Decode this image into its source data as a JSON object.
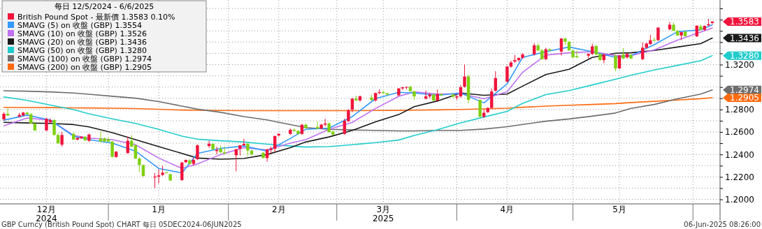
{
  "chart_data": {
    "type": "candlestick",
    "legend_title": "每日 12/5/2024 - 6/6/2025",
    "legend": "top left",
    "grid": true,
    "x": [
      "2024-12-05",
      "2024-12-06",
      "2024-12-09",
      "2024-12-10",
      "2024-12-11",
      "2024-12-12",
      "2024-12-13",
      "2024-12-16",
      "2024-12-17",
      "2024-12-18",
      "2024-12-19",
      "2024-12-20",
      "2024-12-23",
      "2024-12-24",
      "2024-12-25",
      "2024-12-26",
      "2024-12-27",
      "2024-12-30",
      "2024-12-31",
      "2025-01-01",
      "2025-01-02",
      "2025-01-03",
      "2025-01-06",
      "2025-01-07",
      "2025-01-08",
      "2025-01-09",
      "2025-01-10",
      "2025-01-13",
      "2025-01-14",
      "2025-01-15",
      "2025-01-16",
      "2025-01-17",
      "2025-01-20",
      "2025-01-21",
      "2025-01-22",
      "2025-01-23",
      "2025-01-24",
      "2025-01-27",
      "2025-01-28",
      "2025-01-29",
      "2025-01-30",
      "2025-01-31",
      "2025-02-03",
      "2025-02-04",
      "2025-02-05",
      "2025-02-06",
      "2025-02-07",
      "2025-02-10",
      "2025-02-11",
      "2025-02-12",
      "2025-02-13",
      "2025-02-14",
      "2025-02-17",
      "2025-02-18",
      "2025-02-19",
      "2025-02-20",
      "2025-02-21",
      "2025-02-24",
      "2025-02-25",
      "2025-02-26",
      "2025-02-27",
      "2025-02-28",
      "2025-03-03",
      "2025-03-04",
      "2025-03-05",
      "2025-03-06",
      "2025-03-07",
      "2025-03-10",
      "2025-03-11",
      "2025-03-12",
      "2025-03-13",
      "2025-03-14",
      "2025-03-17",
      "2025-03-18",
      "2025-03-19",
      "2025-03-20",
      "2025-03-21",
      "2025-03-24",
      "2025-03-25",
      "2025-03-26",
      "2025-03-27",
      "2025-03-28",
      "2025-03-31",
      "2025-04-01",
      "2025-04-02",
      "2025-04-03",
      "2025-04-04",
      "2025-04-07",
      "2025-04-08",
      "2025-04-09",
      "2025-04-10",
      "2025-04-11",
      "2025-04-14",
      "2025-04-15",
      "2025-04-16",
      "2025-04-17",
      "2025-04-18",
      "2025-04-21",
      "2025-04-22",
      "2025-04-23",
      "2025-04-24",
      "2025-04-25",
      "2025-04-28",
      "2025-04-29",
      "2025-04-30",
      "2025-05-01",
      "2025-05-02",
      "2025-05-05",
      "2025-05-06",
      "2025-05-07",
      "2025-05-08",
      "2025-05-09",
      "2025-05-12",
      "2025-05-13",
      "2025-05-14",
      "2025-05-15",
      "2025-05-16",
      "2025-05-19",
      "2025-05-20",
      "2025-05-21",
      "2025-05-22",
      "2025-05-23",
      "2025-05-26",
      "2025-05-27",
      "2025-05-28",
      "2025-05-29",
      "2025-05-30",
      "2025-06-02",
      "2025-06-03",
      "2025-06-04",
      "2025-06-05",
      "2025-06-06"
    ],
    "xlim": [
      "2024-12-04",
      "2025-06-08"
    ],
    "xticks": [
      {
        "value": "2024-12-16",
        "label": "12月\n2024"
      },
      {
        "value": "2025-01-01",
        "label": null
      },
      {
        "value": "2025-01-14",
        "label": "1月"
      },
      {
        "value": "2025-02-01",
        "label": null
      },
      {
        "value": "2025-02-14",
        "label": "2月"
      },
      {
        "value": "2025-03-01",
        "label": null
      },
      {
        "value": "2025-03-13",
        "label": "3月\n2025"
      },
      {
        "value": "2025-04-01",
        "label": null
      },
      {
        "value": "2025-04-14",
        "label": "4月"
      },
      {
        "value": "2025-05-01",
        "label": null
      },
      {
        "value": "2025-05-13",
        "label": "5月"
      },
      {
        "value": "2025-06-01",
        "label": null
      }
    ],
    "ylim": [
      1.196,
      1.3775
    ],
    "yticks": [
      {
        "value": 1.2,
        "label": "1.2000"
      },
      {
        "value": 1.21,
        "label": null
      },
      {
        "value": 1.22,
        "label": "1.2200"
      },
      {
        "value": 1.23,
        "label": null
      },
      {
        "value": 1.24,
        "label": "1.2400"
      },
      {
        "value": 1.25,
        "label": null
      },
      {
        "value": 1.26,
        "label": "1.2600"
      },
      {
        "value": 1.27,
        "label": null
      },
      {
        "value": 1.28,
        "label": "1.2800"
      },
      {
        "value": 1.29,
        "label": null
      },
      {
        "value": 1.3,
        "label": null
      },
      {
        "value": 1.31,
        "label": null
      },
      {
        "value": 1.32,
        "label": "1.3200"
      },
      {
        "value": 1.33,
        "label": null
      },
      {
        "value": 1.34,
        "label": null
      },
      {
        "value": 1.35,
        "label": null
      },
      {
        "value": 1.36,
        "label": null
      },
      {
        "value": 1.37,
        "label": null
      }
    ],
    "annotations": [
      {
        "text": "1.3583",
        "x": "2025-06-06",
        "y": 1.3583
      },
      {
        "text": "1.3436",
        "x": "2025-06-06",
        "y": 1.3436
      },
      {
        "text": "1.3280",
        "x": "2025-06-06",
        "y": 1.328
      },
      {
        "text": "1.2974",
        "x": "2025-06-06",
        "y": 1.2974
      },
      {
        "text": "1.2905",
        "x": "2025-06-06",
        "y": 1.2905
      },
      "GBP Curncy (British Pound Spot) CHART 每日 05DEC2024-06JUN2025",
      "06-Jun-2025 08:26:00"
    ],
    "series": [
      {
        "name": "British Pound Spot - 最新價 1.3583 0.10%",
        "color": "#f0143c",
        "ohlc": [
          [
            1.2713,
            1.2775,
            1.27,
            1.2762
          ],
          [
            1.2762,
            1.281,
            1.2745,
            1.2746
          ],
          [
            1.2737,
            1.277,
            1.273,
            1.2752
          ],
          [
            1.2747,
            1.278,
            1.274,
            1.2772
          ],
          [
            1.2772,
            1.2782,
            1.2755,
            1.2758
          ],
          [
            1.2758,
            1.277,
            1.2676,
            1.2676
          ],
          [
            1.2676,
            1.268,
            1.261,
            1.2614
          ],
          [
            1.2614,
            1.2725,
            1.261,
            1.2717
          ],
          [
            1.2686,
            1.272,
            1.268,
            1.2706
          ],
          [
            1.2706,
            1.2715,
            1.257,
            1.2573
          ],
          [
            1.2573,
            1.259,
            1.2498,
            1.2499
          ],
          [
            1.2487,
            1.26,
            1.247,
            1.2573
          ],
          [
            1.2583,
            1.2595,
            1.253,
            1.2532
          ],
          [
            1.2532,
            1.255,
            1.2525,
            1.2548
          ],
          [
            1.2544,
            1.2562,
            1.254,
            1.2558
          ],
          [
            1.2558,
            1.2562,
            1.252,
            1.2526
          ],
          [
            1.2522,
            1.2585,
            1.251,
            1.2577
          ],
          [
            1.2542,
            1.2604,
            1.251,
            1.2515
          ],
          [
            1.2542,
            1.255,
            1.2512,
            1.2515
          ],
          [
            1.2536,
            1.2545,
            1.251,
            1.2515
          ],
          [
            1.2515,
            1.252,
            1.2375,
            1.2378
          ],
          [
            1.2378,
            1.243,
            1.237,
            1.2425
          ],
          [
            1.2413,
            1.256,
            1.2405,
            1.2522
          ],
          [
            1.2522,
            1.2573,
            1.2465,
            1.247
          ],
          [
            1.2481,
            1.249,
            1.236,
            1.2364
          ],
          [
            1.2364,
            1.2375,
            1.2245,
            1.2306
          ],
          [
            1.2306,
            1.231,
            1.2205,
            1.2207
          ],
          [
            1.2195,
            1.2234,
            1.2101,
            1.2203
          ],
          [
            1.2203,
            1.2269,
            1.2142,
            1.2214
          ],
          [
            1.2218,
            1.23,
            1.221,
            1.2238
          ],
          [
            1.224,
            1.225,
            1.223,
            1.2236
          ],
          [
            1.2224,
            1.223,
            1.2165,
            1.2168
          ],
          [
            1.2172,
            1.2335,
            1.2165,
            1.2327
          ],
          [
            1.2331,
            1.2355,
            1.2325,
            1.2351
          ],
          [
            1.2347,
            1.236,
            1.231,
            1.2316
          ],
          [
            1.2316,
            1.237,
            1.23,
            1.2351
          ],
          [
            1.2358,
            1.249,
            1.235,
            1.2481
          ],
          [
            1.2475,
            1.2522,
            1.246,
            1.2495
          ],
          [
            1.2495,
            1.25,
            1.244,
            1.2446
          ],
          [
            1.243,
            1.247,
            1.24,
            1.244
          ],
          [
            1.245,
            1.248,
            1.2415,
            1.2419
          ],
          [
            1.2419,
            1.247,
            1.24,
            1.2409
          ],
          [
            1.2393,
            1.245,
            1.225,
            1.2446
          ],
          [
            1.245,
            1.2483,
            1.239,
            1.2481
          ],
          [
            1.2481,
            1.254,
            1.2475,
            1.2495
          ],
          [
            1.2495,
            1.2505,
            1.239,
            1.2434
          ],
          [
            1.2434,
            1.2445,
            1.2395,
            1.2399
          ],
          [
            1.2415,
            1.242,
            1.2365,
            1.2368
          ],
          [
            1.2368,
            1.245,
            1.2335,
            1.2444
          ],
          [
            1.244,
            1.247,
            1.241,
            1.2454
          ],
          [
            1.245,
            1.257,
            1.242,
            1.2563
          ],
          [
            1.2569,
            1.259,
            1.256,
            1.2583
          ],
          [
            1.2583,
            1.263,
            1.2575,
            1.262
          ],
          [
            1.262,
            1.263,
            1.2605,
            1.261
          ],
          [
            1.261,
            1.2615,
            1.2575,
            1.2583
          ],
          [
            1.2583,
            1.267,
            1.2575,
            1.2665
          ],
          [
            1.2665,
            1.2675,
            1.263,
            1.2634
          ],
          [
            1.2645,
            1.269,
            1.2625,
            1.263
          ],
          [
            1.263,
            1.2673,
            1.2625,
            1.2665
          ],
          [
            1.2665,
            1.2717,
            1.265,
            1.2676
          ],
          [
            1.2676,
            1.2685,
            1.2595,
            1.2598
          ],
          [
            1.2604,
            1.261,
            1.257,
            1.2577
          ],
          [
            1.2583,
            1.272,
            1.2575,
            1.27
          ],
          [
            1.2696,
            1.2805,
            1.269,
            1.2793
          ],
          [
            1.2799,
            1.29,
            1.2775,
            1.2897
          ],
          [
            1.2897,
            1.2922,
            1.2875,
            1.2881
          ],
          [
            1.2881,
            1.2925,
            1.287,
            1.2918
          ],
          [
            1.2906,
            1.2932,
            1.288,
            1.2885
          ],
          [
            1.2881,
            1.295,
            1.287,
            1.2947
          ],
          [
            1.2947,
            1.298,
            1.2935,
            1.2955
          ],
          [
            1.2955,
            1.2965,
            1.294,
            1.2945
          ],
          [
            1.2945,
            1.295,
            1.2925,
            1.2933
          ],
          [
            1.2926,
            1.299,
            1.292,
            1.2988
          ],
          [
            1.2988,
            1.3,
            1.2975,
            1.2998
          ],
          [
            1.2998,
            1.3005,
            1.298,
            1.3002
          ],
          [
            1.3002,
            1.301,
            1.296,
            1.2962
          ],
          [
            1.2962,
            1.2968,
            1.2885,
            1.2917
          ],
          [
            1.2896,
            1.2968,
            1.289,
            1.2917
          ],
          [
            1.2917,
            1.2945,
            1.29,
            1.2933
          ],
          [
            1.2933,
            1.294,
            1.2875,
            1.288
          ],
          [
            1.288,
            1.2978,
            1.2875,
            1.2937
          ],
          [
            1.2937,
            1.2945,
            1.292,
            1.2927
          ],
          [
            1.2933,
            1.294,
            1.2905,
            1.2913
          ],
          [
            1.2907,
            1.2925,
            1.2885,
            1.2917
          ],
          [
            1.2917,
            1.3018,
            1.2905,
            1.2998
          ],
          [
            1.3002,
            1.3199,
            1.2995,
            1.3094
          ],
          [
            1.3094,
            1.311,
            1.2855,
            1.2886
          ],
          [
            1.2886,
            1.289,
            1.2733,
            1.2736
          ],
          [
            1.2736,
            1.28,
            1.2725,
            1.2771
          ],
          [
            1.2776,
            1.282,
            1.277,
            1.2814
          ],
          [
            1.2814,
            1.2988,
            1.281,
            1.2961
          ],
          [
            1.2967,
            1.3141,
            1.296,
            1.308
          ],
          [
            1.3049,
            1.319,
            1.304,
            1.3182
          ],
          [
            1.3182,
            1.3234,
            1.317,
            1.3219
          ],
          [
            1.3227,
            1.3285,
            1.3215,
            1.324
          ],
          [
            1.324,
            1.326,
            1.3225,
            1.326
          ],
          [
            1.326,
            1.33,
            1.325,
            1.3291
          ],
          [
            1.3291,
            1.339,
            1.328,
            1.3371
          ],
          [
            1.3371,
            1.3387,
            1.332,
            1.3326
          ],
          [
            1.3326,
            1.334,
            1.3245,
            1.3248
          ],
          [
            1.3248,
            1.335,
            1.324,
            1.3336
          ],
          [
            1.3336,
            1.3345,
            1.332,
            1.3326
          ],
          [
            1.3316,
            1.3436,
            1.328,
            1.3432
          ],
          [
            1.3432,
            1.344,
            1.3378,
            1.3403
          ],
          [
            1.3403,
            1.341,
            1.3325,
            1.3326
          ],
          [
            1.3326,
            1.3335,
            1.326,
            1.3264
          ],
          [
            1.3275,
            1.3326,
            1.326,
            1.3264
          ],
          [
            1.328,
            1.33,
            1.3255,
            1.3295
          ],
          [
            1.3295,
            1.3387,
            1.3285,
            1.3362
          ],
          [
            1.3366,
            1.3375,
            1.3285,
            1.3289
          ],
          [
            1.3295,
            1.33,
            1.3235,
            1.324
          ],
          [
            1.324,
            1.33,
            1.3213,
            1.3289
          ],
          [
            1.328,
            1.329,
            1.3141,
            1.3166
          ],
          [
            1.3166,
            1.3285,
            1.316,
            1.328
          ],
          [
            1.3289,
            1.3346,
            1.325,
            1.3254
          ],
          [
            1.3264,
            1.33,
            1.3255,
            1.3295
          ],
          [
            1.3285,
            1.3295,
            1.325,
            1.3254
          ],
          [
            1.3248,
            1.3397,
            1.324,
            1.335
          ],
          [
            1.335,
            1.3395,
            1.334,
            1.3387
          ],
          [
            1.3383,
            1.3465,
            1.3375,
            1.3417
          ],
          [
            1.342,
            1.3438,
            1.3405,
            1.3415
          ],
          [
            1.3417,
            1.353,
            1.341,
            1.353
          ],
          [
            1.3514,
            1.3581,
            1.3505,
            1.3555
          ],
          [
            1.3555,
            1.3575,
            1.35,
            1.35
          ],
          [
            1.35,
            1.351,
            1.3455,
            1.3459
          ],
          [
            1.3459,
            1.349,
            1.3418,
            1.3489
          ],
          [
            1.3493,
            1.35,
            1.345,
            1.3452
          ],
          [
            1.3452,
            1.355,
            1.3445,
            1.3546
          ],
          [
            1.354,
            1.3555,
            1.3505,
            1.3509
          ],
          [
            1.3509,
            1.355,
            1.35,
            1.3544
          ],
          [
            1.355,
            1.3607,
            1.354,
            1.356
          ],
          [
            1.357,
            1.3585,
            1.356,
            1.3583
          ]
        ],
        "colors": [
          "#f0143c",
          "#7fd011",
          "#f0143c",
          "#f0143c",
          "#7fd011",
          "#7fd011",
          "#7fd011",
          "#f0143c",
          "#f0143c",
          "#7fd011",
          "#7fd011",
          "#f0143c",
          "#7fd011",
          "#f0143c",
          "#f0143c",
          "#7fd011",
          "#f0143c",
          "#7fd011",
          "#7fd011",
          "#7fd011",
          "#7fd011",
          "#f0143c",
          "#f0143c",
          "#7fd011",
          "#7fd011",
          "#7fd011",
          "#7fd011",
          "#f0143c",
          "#f0143c",
          "#f0143c",
          "#7fd011",
          "#7fd011",
          "#f0143c",
          "#f0143c",
          "#7fd011",
          "#f0143c",
          "#f0143c",
          "#f0143c",
          "#7fd011",
          "#f0143c",
          "#7fd011",
          "#7fd011",
          "#f0143c",
          "#f0143c",
          "#f0143c",
          "#7fd011",
          "#7fd011",
          "#7fd011",
          "#f0143c",
          "#f0143c",
          "#f0143c",
          "#f0143c",
          "#f0143c",
          "#7fd011",
          "#7fd011",
          "#f0143c",
          "#7fd011",
          "#7fd011",
          "#f0143c",
          "#f0143c",
          "#7fd011",
          "#7fd011",
          "#f0143c",
          "#f0143c",
          "#f0143c",
          "#7fd011",
          "#f0143c",
          "#7fd011",
          "#f0143c",
          "#f0143c",
          "#7fd011",
          "#7fd011",
          "#f0143c",
          "#f0143c",
          "#f0143c",
          "#7fd011",
          "#7fd011",
          "#f0143c",
          "#f0143c",
          "#7fd011",
          "#f0143c",
          "#7fd011",
          "#7fd011",
          "#f0143c",
          "#f0143c",
          "#f0143c",
          "#7fd011",
          "#7fd011",
          "#f0143c",
          "#f0143c",
          "#f0143c",
          "#f0143c",
          "#f0143c",
          "#f0143c",
          "#f0143c",
          "#f0143c",
          "#f0143c",
          "#f0143c",
          "#7fd011",
          "#7fd011",
          "#f0143c",
          "#7fd011",
          "#f0143c",
          "#7fd011",
          "#7fd011",
          "#7fd011",
          "#7fd011",
          "#f0143c",
          "#f0143c",
          "#7fd011",
          "#7fd011",
          "#f0143c",
          "#7fd011",
          "#f0143c",
          "#7fd011",
          "#f0143c",
          "#7fd011",
          "#f0143c",
          "#f0143c",
          "#f0143c",
          "#7fd011",
          "#f0143c",
          "#f0143c",
          "#7fd011",
          "#7fd011",
          "#f0143c",
          "#7fd011",
          "#f0143c",
          "#7fd011",
          "#f0143c",
          "#f0143c",
          "#f0143c"
        ]
      },
      {
        "type": "line",
        "name": "SMAVG (5) on 收盤 (GBP) 1.3554",
        "color": "#3399ff",
        "x": [
          "2024-12-05",
          "2024-12-11",
          "2024-12-17",
          "2024-12-23",
          "2024-12-27",
          "2025-01-02",
          "2025-01-08",
          "2025-01-14",
          "2025-01-20",
          "2025-01-24",
          "2025-01-30",
          "2025-02-05",
          "2025-02-11",
          "2025-02-17",
          "2025-02-21",
          "2025-02-27",
          "2025-03-05",
          "2025-03-11",
          "2025-03-17",
          "2025-03-21",
          "2025-03-27",
          "2025-04-02",
          "2025-04-08",
          "2025-04-14",
          "2025-04-18",
          "2025-04-24",
          "2025-04-30",
          "2025-05-06",
          "2025-05-12",
          "2025-05-16",
          "2025-05-22",
          "2025-05-28",
          "2025-06-03",
          "2025-06-06"
        ],
        "values": [
          1.2705,
          1.275,
          1.2706,
          1.2563,
          1.2532,
          1.2501,
          1.243,
          1.2276,
          1.2235,
          1.2409,
          1.2454,
          1.2475,
          1.243,
          1.2542,
          1.2624,
          1.2634,
          1.2737,
          1.2897,
          1.2953,
          1.2947,
          1.2927,
          1.2947,
          1.2859,
          1.3029,
          1.3264,
          1.3315,
          1.3356,
          1.3315,
          1.3264,
          1.328,
          1.3377,
          1.3493,
          1.3509,
          1.3554
        ]
      },
      {
        "type": "line",
        "name": "SMAVG (10) on 收盤 (GBP) 1.3526",
        "color": "#c070f0",
        "x": [
          "2024-12-05",
          "2024-12-11",
          "2024-12-17",
          "2024-12-23",
          "2024-12-27",
          "2025-01-02",
          "2025-01-08",
          "2025-01-14",
          "2025-01-20",
          "2025-01-24",
          "2025-01-30",
          "2025-02-05",
          "2025-02-11",
          "2025-02-17",
          "2025-02-21",
          "2025-02-27",
          "2025-03-05",
          "2025-03-11",
          "2025-03-17",
          "2025-03-21",
          "2025-03-27",
          "2025-04-02",
          "2025-04-08",
          "2025-04-14",
          "2025-04-18",
          "2025-04-24",
          "2025-04-30",
          "2025-05-06",
          "2025-05-12",
          "2025-05-16",
          "2025-05-22",
          "2025-05-28",
          "2025-06-03",
          "2025-06-06"
        ],
        "values": [
          1.2655,
          1.2724,
          1.2706,
          1.2569,
          1.2546,
          1.2532,
          1.2487,
          1.2368,
          1.2276,
          1.2316,
          1.2399,
          1.246,
          1.244,
          1.2501,
          1.2532,
          1.2624,
          1.2686,
          1.2809,
          1.2917,
          1.2957,
          1.2937,
          1.2941,
          1.2896,
          1.2957,
          1.3131,
          1.3285,
          1.3305,
          1.3315,
          1.328,
          1.328,
          1.333,
          1.3418,
          1.3489,
          1.3526
        ]
      },
      {
        "type": "line",
        "name": "SMAVG (20) on 收盤 (GBP) 1.3436",
        "color": "#1a1a1a",
        "x": [
          "2024-12-05",
          "2024-12-11",
          "2024-12-17",
          "2024-12-23",
          "2024-12-27",
          "2025-01-02",
          "2025-01-08",
          "2025-01-14",
          "2025-01-20",
          "2025-01-24",
          "2025-01-30",
          "2025-02-05",
          "2025-02-11",
          "2025-02-17",
          "2025-02-21",
          "2025-02-27",
          "2025-03-05",
          "2025-03-11",
          "2025-03-17",
          "2025-03-21",
          "2025-03-27",
          "2025-04-02",
          "2025-04-08",
          "2025-04-14",
          "2025-04-18",
          "2025-04-24",
          "2025-04-30",
          "2025-05-06",
          "2025-05-12",
          "2025-05-16",
          "2025-05-22",
          "2025-05-28",
          "2025-06-03",
          "2025-06-06"
        ],
        "values": [
          1.2686,
          1.268,
          1.2676,
          1.2666,
          1.2645,
          1.2594,
          1.2532,
          1.247,
          1.2409,
          1.2368,
          1.2358,
          1.2364,
          1.2399,
          1.246,
          1.2511,
          1.2556,
          1.2614,
          1.269,
          1.2755,
          1.2825,
          1.2876,
          1.2947,
          1.2927,
          1.2937,
          1.3008,
          1.3111,
          1.3158,
          1.3264,
          1.3301,
          1.3305,
          1.3326,
          1.3356,
          1.3387,
          1.3436
        ]
      },
      {
        "type": "line",
        "name": "SMAVG (50) on 收盤 (GBP) 1.3280",
        "color": "#22cccc",
        "x": [
          "2024-12-05",
          "2024-12-11",
          "2024-12-17",
          "2024-12-23",
          "2024-12-27",
          "2025-01-02",
          "2025-01-08",
          "2025-01-14",
          "2025-01-20",
          "2025-01-24",
          "2025-01-30",
          "2025-02-05",
          "2025-02-11",
          "2025-02-17",
          "2025-02-21",
          "2025-02-27",
          "2025-03-05",
          "2025-03-11",
          "2025-03-17",
          "2025-03-21",
          "2025-03-27",
          "2025-04-02",
          "2025-04-08",
          "2025-04-14",
          "2025-04-18",
          "2025-04-24",
          "2025-04-30",
          "2025-05-06",
          "2025-05-12",
          "2025-05-16",
          "2025-05-22",
          "2025-05-28",
          "2025-06-03",
          "2025-06-06"
        ],
        "values": [
          1.2912,
          1.2881,
          1.284,
          1.2799,
          1.2762,
          1.2717,
          1.2676,
          1.2624,
          1.2563,
          1.2536,
          1.2522,
          1.2511,
          1.2491,
          1.2475,
          1.2466,
          1.247,
          1.2487,
          1.2505,
          1.2528,
          1.2569,
          1.262,
          1.2681,
          1.2733,
          1.2784,
          1.2855,
          1.2933,
          1.2968,
          1.3019,
          1.307,
          1.3105,
          1.3152,
          1.3193,
          1.3234,
          1.328
        ]
      },
      {
        "type": "line",
        "name": "SMAVG (100) on 收盤 (GBP) 1.2974",
        "color": "#6e6e6e",
        "x": [
          "2024-12-05",
          "2024-12-11",
          "2024-12-17",
          "2024-12-23",
          "2024-12-27",
          "2025-01-02",
          "2025-01-08",
          "2025-01-14",
          "2025-01-20",
          "2025-01-24",
          "2025-01-30",
          "2025-02-05",
          "2025-02-11",
          "2025-02-17",
          "2025-02-21",
          "2025-02-27",
          "2025-03-05",
          "2025-03-11",
          "2025-03-17",
          "2025-03-21",
          "2025-03-27",
          "2025-04-02",
          "2025-04-08",
          "2025-04-14",
          "2025-04-18",
          "2025-04-24",
          "2025-04-30",
          "2025-05-06",
          "2025-05-12",
          "2025-05-16",
          "2025-05-22",
          "2025-05-28",
          "2025-06-03",
          "2025-06-06"
        ],
        "values": [
          1.2967,
          1.2963,
          1.2957,
          1.2947,
          1.2936,
          1.2918,
          1.2901,
          1.2871,
          1.283,
          1.2803,
          1.2775,
          1.2737,
          1.2707,
          1.2666,
          1.2639,
          1.2624,
          1.2618,
          1.2614,
          1.261,
          1.261,
          1.2614,
          1.2614,
          1.2626,
          1.2647,
          1.2667,
          1.2696,
          1.2716,
          1.2741,
          1.2769,
          1.281,
          1.2845,
          1.2896,
          1.2937,
          1.2974
        ]
      },
      {
        "type": "line",
        "name": "SMAVG (200) on 收盤 (GBP) 1.2905",
        "color": "#ff6a10",
        "x": [
          "2024-12-05",
          "2024-12-11",
          "2024-12-17",
          "2024-12-23",
          "2024-12-27",
          "2025-01-02",
          "2025-01-08",
          "2025-01-14",
          "2025-01-20",
          "2025-01-24",
          "2025-01-30",
          "2025-02-05",
          "2025-02-11",
          "2025-02-17",
          "2025-02-21",
          "2025-02-27",
          "2025-03-05",
          "2025-03-11",
          "2025-03-17",
          "2025-03-21",
          "2025-03-27",
          "2025-04-02",
          "2025-04-08",
          "2025-04-14",
          "2025-04-18",
          "2025-04-24",
          "2025-04-30",
          "2025-05-06",
          "2025-05-12",
          "2025-05-16",
          "2025-05-22",
          "2025-05-28",
          "2025-06-03",
          "2025-06-06"
        ],
        "values": [
          1.2819,
          1.2818,
          1.2817,
          1.2815,
          1.2814,
          1.2812,
          1.2808,
          1.2802,
          1.2795,
          1.2793,
          1.2791,
          1.279,
          1.279,
          1.279,
          1.279,
          1.279,
          1.279,
          1.2791,
          1.2792,
          1.2794,
          1.2797,
          1.2801,
          1.2805,
          1.2812,
          1.282,
          1.283,
          1.2838,
          1.2845,
          1.2853,
          1.2862,
          1.2873,
          1.2885,
          1.2896,
          1.2905
        ]
      }
    ]
  }
}
